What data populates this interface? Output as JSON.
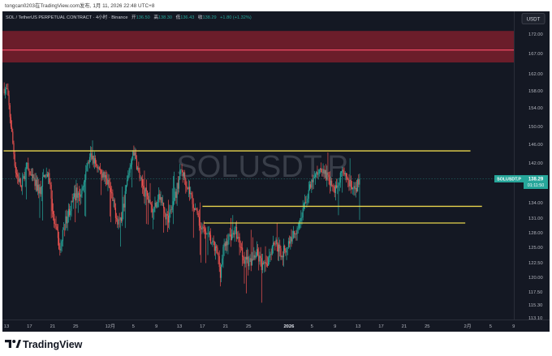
{
  "header": {
    "publish_line": "tongcan0203在TradingView.com发布, 1月 11, 2026 22:48 UTC+8"
  },
  "chart_title": "SOL / TetherUS PERPETUAL CONTRACT · 4小时 · Binance",
  "ohlc": {
    "open_label": "开",
    "open": "136.50",
    "high_label": "高",
    "high": "138.30",
    "low_label": "低",
    "low": "136.43",
    "close_label": "收",
    "close": "138.29",
    "change": "+1.80 (+1.32%)"
  },
  "watermark": "SOLUSDT.P",
  "currency_button": "USDT",
  "price_badge": {
    "symbol": "SOLUSDT.P",
    "price": "138.29",
    "countdown": "01:11:50"
  },
  "footer": {
    "brand": "TradingView"
  },
  "colors": {
    "background": "#141823",
    "up": "#26a69a",
    "down": "#ef5350",
    "level_line": "#e8d44d",
    "resistance_zone": "#7a1f2b",
    "resistance_line": "#ff4f6a",
    "axis_text": "#b2b5be"
  },
  "chart_data": {
    "type": "candlestick",
    "title": "SOL / TetherUS PERPETUAL CONTRACT · 4小时 · Binance",
    "y_ticks": [
      172.0,
      167.0,
      162.0,
      158.0,
      154.0,
      150.0,
      146.0,
      142.0,
      138.0,
      134.0,
      131.0,
      128.0,
      125.0,
      122.5,
      120.0,
      117.5,
      115.3,
      113.1
    ],
    "y_tick_labels": [
      "172.00",
      "167.00",
      "162.00",
      "158.00",
      "154.00",
      "150.00",
      "146.00",
      "142.00",
      "138.00",
      "134.00",
      "131.00",
      "128.00",
      "125.00",
      "122.50",
      "120.00",
      "117.50",
      "115.30",
      "113.10"
    ],
    "x_tick_labels": [
      "13",
      "17",
      "21",
      "25",
      "12月",
      "5",
      "9",
      "13",
      "17",
      "21",
      "25",
      "2026",
      "5",
      "9",
      "13",
      "17",
      "21",
      "25",
      "2月",
      "5",
      "9"
    ],
    "x_tick_days": [
      0,
      4,
      8,
      12,
      18,
      22,
      26,
      30,
      34,
      38,
      42,
      49,
      53,
      57,
      61,
      65,
      69,
      73,
      80,
      84,
      88
    ],
    "date_axis_start": "2025-11-13",
    "last_price": 138.29,
    "ohlc_last": {
      "open": 136.5,
      "high": 138.3,
      "low": 136.43,
      "close": 138.29
    },
    "resistance_zone": {
      "from": 164.8,
      "to": 172.8
    },
    "resistance_line": 167.9,
    "horizontal_levels": [
      {
        "price": 144.6,
        "from_day": -0.5,
        "to_day": 80.5
      },
      {
        "price": 133.3,
        "from_day": 34.0,
        "to_day": 82.5
      },
      {
        "price": 130.0,
        "from_day": 34.2,
        "to_day": 79.6
      }
    ],
    "price_path": [
      [
        -0.4,
        158.5
      ],
      [
        0.1,
        158.0
      ],
      [
        0.8,
        150.0
      ],
      [
        1.6,
        140.0
      ],
      [
        2.6,
        136.5
      ],
      [
        3.5,
        141.5
      ],
      [
        4.3,
        138.5
      ],
      [
        5.1,
        137.0
      ],
      [
        5.9,
        136.0
      ],
      [
        6.7,
        140.0
      ],
      [
        7.5,
        138.0
      ],
      [
        8.1,
        131.0
      ],
      [
        8.7,
        128.0
      ],
      [
        9.3,
        124.0
      ],
      [
        9.9,
        129.0
      ],
      [
        10.7,
        132.0
      ],
      [
        11.5,
        134.0
      ],
      [
        12.2,
        136.0
      ],
      [
        13.0,
        135.0
      ],
      [
        13.8,
        140.5
      ],
      [
        14.6,
        143.5
      ],
      [
        15.4,
        142.0
      ],
      [
        16.3,
        140.0
      ],
      [
        17.1,
        138.5
      ],
      [
        17.9,
        136.5
      ],
      [
        18.7,
        133.0
      ],
      [
        19.3,
        130.5
      ],
      [
        20.0,
        131.0
      ],
      [
        20.7,
        136.0
      ],
      [
        21.4,
        141.0
      ],
      [
        22.0,
        145.0
      ],
      [
        22.6,
        141.5
      ],
      [
        23.3,
        137.5
      ],
      [
        24.0,
        136.0
      ],
      [
        24.7,
        134.0
      ],
      [
        25.5,
        132.5
      ],
      [
        26.3,
        135.5
      ],
      [
        27.1,
        133.5
      ],
      [
        27.9,
        130.5
      ],
      [
        28.7,
        133.0
      ],
      [
        29.5,
        136.0
      ],
      [
        30.3,
        140.5
      ],
      [
        31.1,
        138.0
      ],
      [
        31.9,
        135.5
      ],
      [
        32.7,
        133.0
      ],
      [
        33.3,
        130.0
      ],
      [
        34.0,
        128.5
      ],
      [
        34.7,
        128.0
      ],
      [
        35.4,
        126.5
      ],
      [
        36.0,
        125.0
      ],
      [
        36.6,
        124.0
      ],
      [
        37.1,
        121.0
      ],
      [
        37.6,
        124.5
      ],
      [
        38.3,
        126.5
      ],
      [
        39.0,
        127.5
      ],
      [
        39.7,
        128.5
      ],
      [
        40.4,
        126.0
      ],
      [
        41.1,
        123.5
      ],
      [
        41.8,
        123.0
      ],
      [
        42.5,
        122.5
      ],
      [
        43.2,
        124.0
      ],
      [
        43.9,
        123.0
      ],
      [
        44.5,
        121.5
      ],
      [
        45.1,
        122.5
      ],
      [
        45.8,
        124.5
      ],
      [
        46.5,
        126.5
      ],
      [
        47.1,
        125.0
      ],
      [
        47.7,
        124.0
      ],
      [
        48.3,
        124.5
      ],
      [
        49.0,
        126.0
      ],
      [
        49.7,
        127.5
      ],
      [
        50.4,
        129.0
      ],
      [
        51.1,
        131.0
      ],
      [
        51.8,
        134.0
      ],
      [
        52.5,
        136.0
      ],
      [
        53.2,
        138.0
      ],
      [
        53.9,
        139.5
      ],
      [
        54.5,
        141.0
      ],
      [
        55.1,
        140.0
      ],
      [
        55.7,
        138.5
      ],
      [
        56.3,
        137.5
      ],
      [
        56.9,
        136.0
      ],
      [
        57.5,
        137.5
      ],
      [
        58.2,
        140.5
      ],
      [
        58.8,
        139.5
      ],
      [
        59.4,
        137.5
      ],
      [
        60.0,
        136.0
      ],
      [
        60.6,
        136.0
      ],
      [
        61.0,
        137.5
      ],
      [
        61.4,
        138.29
      ]
    ]
  }
}
